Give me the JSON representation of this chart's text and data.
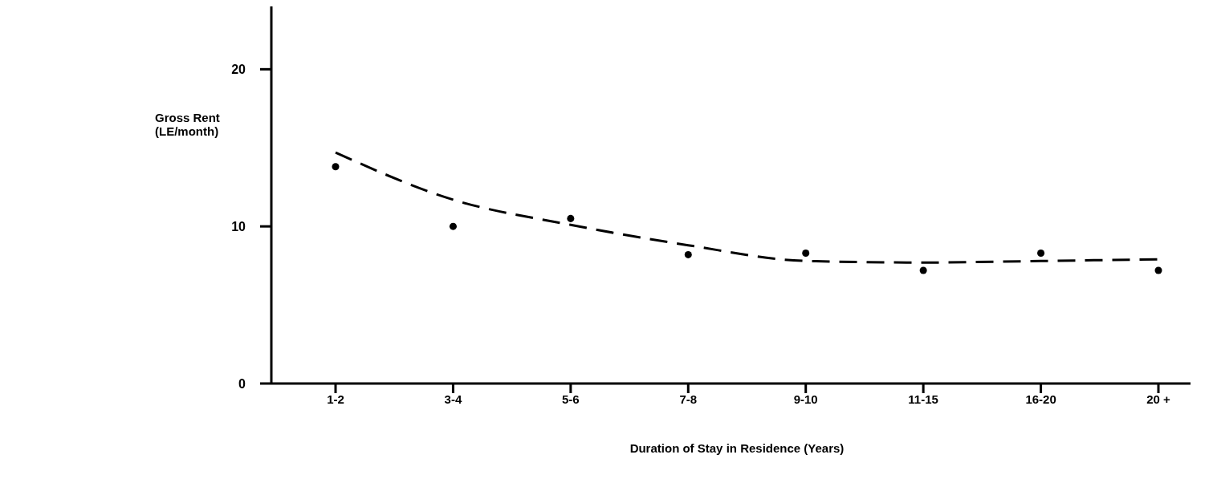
{
  "chart_data": {
    "type": "scatter",
    "xlabel": "Duration of Stay in Residence (Years)",
    "ylabel": "Gross Rent\n(LE/month)",
    "categories": [
      "1-2",
      "3-4",
      "5-6",
      "7-8",
      "9-10",
      "11-15",
      "16-20",
      "20 +"
    ],
    "series": [
      {
        "color": "#000000",
        "marker": "circle",
        "values": [
          13.8,
          10,
          10.5,
          8.2,
          8.3,
          7.2,
          8.3,
          7.2
        ]
      },
      {
        "type": "line",
        "color": "#000000",
        "line_style": "dashed",
        "marker": "none",
        "values": [
          14.7,
          11.7,
          10.1,
          8.8,
          7.8,
          7.7,
          7.8,
          7.9
        ]
      }
    ],
    "ylim": [
      0,
      24
    ],
    "yticks": [
      0,
      10,
      20
    ],
    "grid": false,
    "legend": false
  }
}
